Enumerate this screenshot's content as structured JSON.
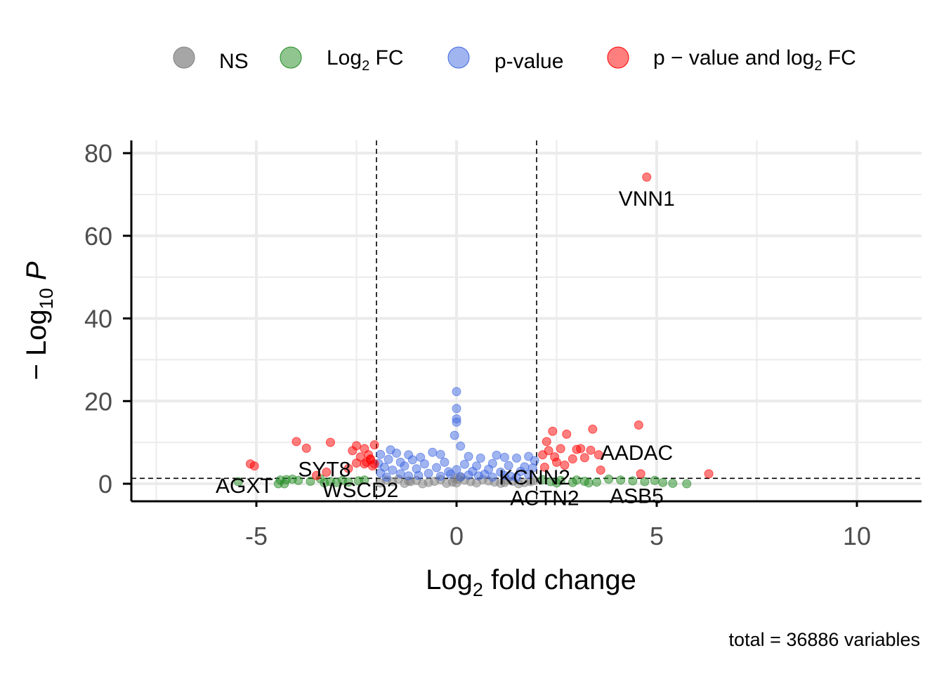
{
  "chart_data": {
    "type": "scatter",
    "title": "",
    "xlabel": "Log2 fold change",
    "ylabel": "− Log10 P",
    "xlim": [
      -8.2,
      11.6
    ],
    "ylim": [
      -4,
      83
    ],
    "x_ticks": [
      -5,
      0,
      5,
      10
    ],
    "y_ticks": [
      0,
      20,
      40,
      60,
      80
    ],
    "grid": true,
    "legend_position": "top",
    "caption": "total = 36886 variables",
    "thresholds": {
      "fc_cutoff": [
        -2,
        2
      ],
      "p_cutoff": 1.3
    },
    "legend": [
      {
        "label": "NS",
        "color": "#808080"
      },
      {
        "label": "Log2 FC",
        "color": "#228B22"
      },
      {
        "label": "p-value",
        "color": "#4169E1"
      },
      {
        "label": "p − value and log2 FC",
        "color": "#FF0000"
      }
    ],
    "labels": [
      {
        "text": "VNN1",
        "x": 4.75,
        "y": 69
      },
      {
        "text": "AADAC",
        "x": 4.5,
        "y": 7.5
      },
      {
        "text": "SYT8",
        "x": -3.3,
        "y": 3.5
      },
      {
        "text": "KCNN2",
        "x": 1.95,
        "y": 1.5
      },
      {
        "text": "AGXT",
        "x": -5.3,
        "y": -0.5
      },
      {
        "text": "WSCD2",
        "x": -2.4,
        "y": -1.5
      },
      {
        "text": "ACTN2",
        "x": 2.2,
        "y": -3.5
      },
      {
        "text": "ASB5",
        "x": 4.5,
        "y": -3.0
      }
    ],
    "series": [
      {
        "name": "p − value and log2 FC",
        "color": "#FF0000",
        "points": [
          [
            4.75,
            74.2
          ],
          [
            4.55,
            14.2
          ],
          [
            3.4,
            13.2
          ],
          [
            2.75,
            12.0
          ],
          [
            2.4,
            12.7
          ],
          [
            2.25,
            10.2
          ],
          [
            2.6,
            8.5
          ],
          [
            3.0,
            8.3
          ],
          [
            3.35,
            8.1
          ],
          [
            3.55,
            7.0
          ],
          [
            3.1,
            8.5
          ],
          [
            2.3,
            8.0
          ],
          [
            2.45,
            6.5
          ],
          [
            2.9,
            6.0
          ],
          [
            3.2,
            6.3
          ],
          [
            2.15,
            7.0
          ],
          [
            2.5,
            5.2
          ],
          [
            2.7,
            4.5
          ],
          [
            3.6,
            3.3
          ],
          [
            4.6,
            2.4
          ],
          [
            6.3,
            2.4
          ],
          [
            2.2,
            4.0
          ],
          [
            -4.0,
            10.2
          ],
          [
            -3.15,
            10.0
          ],
          [
            -3.75,
            8.6
          ],
          [
            -2.5,
            9.2
          ],
          [
            -2.05,
            9.4
          ],
          [
            -2.3,
            8.5
          ],
          [
            -2.6,
            8.0
          ],
          [
            -2.2,
            7.0
          ],
          [
            -2.4,
            6.5
          ],
          [
            -2.15,
            6.0
          ],
          [
            -2.5,
            5.0
          ],
          [
            -2.25,
            5.2
          ],
          [
            -2.1,
            4.3
          ],
          [
            -2.7,
            3.7
          ],
          [
            -3.25,
            2.8
          ],
          [
            -3.5,
            2.0
          ],
          [
            -5.15,
            4.8
          ],
          [
            -5.05,
            4.3
          ],
          [
            -2.3,
            4.8
          ],
          [
            -2.05,
            4.8
          ],
          [
            -2.15,
            5.8
          ]
        ]
      },
      {
        "name": "Log2 FC",
        "color": "#228B22",
        "points": [
          [
            -5.45,
            0.5
          ],
          [
            -4.4,
            0.9
          ],
          [
            -4.25,
            1.0
          ],
          [
            -4.1,
            1.1
          ],
          [
            -3.95,
            0.8
          ],
          [
            -3.65,
            0.6
          ],
          [
            -3.4,
            1.2
          ],
          [
            -3.3,
            0.2
          ],
          [
            -3.15,
            0.5
          ],
          [
            -3.0,
            0.3
          ],
          [
            -2.85,
            0.8
          ],
          [
            -2.7,
            0.4
          ],
          [
            -2.45,
            0.7
          ],
          [
            -2.3,
            0.9
          ],
          [
            -4.45,
            0.0
          ],
          [
            -4.3,
            0.0
          ],
          [
            2.15,
            1.0
          ],
          [
            2.35,
            0.5
          ],
          [
            2.6,
            0.8
          ],
          [
            2.9,
            0.3
          ],
          [
            3.2,
            0.6
          ],
          [
            3.5,
            0.4
          ],
          [
            3.8,
            1.1
          ],
          [
            4.1,
            0.9
          ],
          [
            4.4,
            0.7
          ],
          [
            4.7,
            0.5
          ],
          [
            4.95,
            0.8
          ],
          [
            5.15,
            0.3
          ],
          [
            5.4,
            0.1
          ],
          [
            5.75,
            0.0
          ],
          [
            3.3,
            0.2
          ],
          [
            3.0,
            0.9
          ],
          [
            2.5,
            0.2
          ]
        ]
      },
      {
        "name": "p-value",
        "color": "#4169E1",
        "points": [
          [
            0.0,
            22.3
          ],
          [
            0.0,
            18.2
          ],
          [
            0.0,
            15.7
          ],
          [
            0.0,
            14.9
          ],
          [
            -0.05,
            11.7
          ],
          [
            0.1,
            9.1
          ],
          [
            -1.65,
            8.2
          ],
          [
            -1.9,
            7.1
          ],
          [
            -1.5,
            7.4
          ],
          [
            -1.2,
            7.0
          ],
          [
            -0.6,
            7.6
          ],
          [
            -0.4,
            7.1
          ],
          [
            0.3,
            6.6
          ],
          [
            1.0,
            6.9
          ],
          [
            1.2,
            6.4
          ],
          [
            1.5,
            6.2
          ],
          [
            1.8,
            6.6
          ],
          [
            1.95,
            5.6
          ],
          [
            0.6,
            6.2
          ],
          [
            -0.9,
            6.4
          ],
          [
            -1.1,
            5.8
          ],
          [
            -1.4,
            5.2
          ],
          [
            -1.7,
            5.9
          ],
          [
            -1.95,
            4.9
          ],
          [
            -1.8,
            4.0
          ],
          [
            -1.3,
            4.3
          ],
          [
            -0.8,
            4.8
          ],
          [
            -0.3,
            5.2
          ],
          [
            0.2,
            4.7
          ],
          [
            0.5,
            4.3
          ],
          [
            0.9,
            4.9
          ],
          [
            1.3,
            4.4
          ],
          [
            1.7,
            4.1
          ],
          [
            1.9,
            3.8
          ],
          [
            -1.6,
            3.3
          ],
          [
            -1.0,
            3.6
          ],
          [
            -0.5,
            3.9
          ],
          [
            0.0,
            3.4
          ],
          [
            0.4,
            3.0
          ],
          [
            0.8,
            3.5
          ],
          [
            1.1,
            2.8
          ],
          [
            1.6,
            3.0
          ],
          [
            -1.9,
            2.6
          ],
          [
            -1.4,
            2.4
          ],
          [
            -0.7,
            2.5
          ],
          [
            -0.2,
            2.9
          ],
          [
            0.3,
            2.1
          ],
          [
            0.7,
            2.3
          ],
          [
            1.2,
            2.0
          ],
          [
            1.8,
            2.2
          ],
          [
            -1.2,
            1.9
          ],
          [
            -0.4,
            1.8
          ],
          [
            0.1,
            1.7
          ],
          [
            0.9,
            1.6
          ],
          [
            1.5,
            1.5
          ],
          [
            -1.75,
            1.6
          ],
          [
            -0.95,
            2.0
          ],
          [
            0.55,
            1.9
          ],
          [
            1.35,
            1.8
          ],
          [
            -0.15,
            2.3
          ]
        ]
      },
      {
        "name": "NS",
        "color": "#808080",
        "points": [
          [
            -1.9,
            0.2
          ],
          [
            -1.6,
            0.5
          ],
          [
            -1.3,
            0.1
          ],
          [
            -1.0,
            0.8
          ],
          [
            -0.7,
            0.3
          ],
          [
            -0.4,
            1.0
          ],
          [
            -0.1,
            0.4
          ],
          [
            0.2,
            0.9
          ],
          [
            0.5,
            0.2
          ],
          [
            0.8,
            0.7
          ],
          [
            1.1,
            0.1
          ],
          [
            1.4,
            0.6
          ],
          [
            1.7,
            0.3
          ],
          [
            1.95,
            0.8
          ],
          [
            -1.75,
            0.9
          ],
          [
            -1.45,
            1.1
          ],
          [
            -1.15,
            0.5
          ],
          [
            -0.85,
            0.0
          ],
          [
            -0.55,
            0.6
          ],
          [
            -0.25,
            0.1
          ],
          [
            0.05,
            1.1
          ],
          [
            0.35,
            0.5
          ],
          [
            0.65,
            1.0
          ],
          [
            0.95,
            0.4
          ],
          [
            1.25,
            0.9
          ],
          [
            1.55,
            0.0
          ],
          [
            1.85,
            0.5
          ],
          [
            0.0,
            0.2
          ],
          [
            0.1,
            1.6
          ],
          [
            -0.05,
            1.3
          ],
          [
            -1.2,
            0.7
          ],
          [
            1.2,
            0.3
          ]
        ]
      }
    ]
  }
}
